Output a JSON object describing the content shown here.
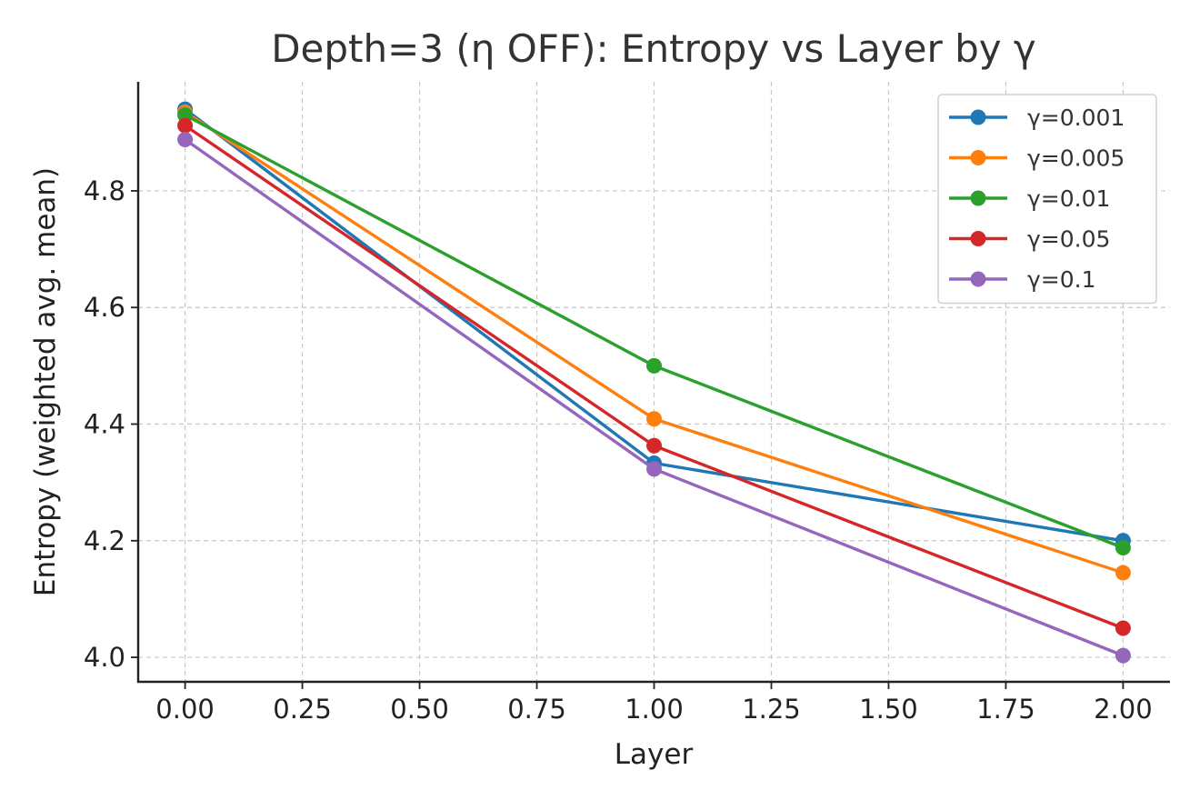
{
  "chart_data": {
    "type": "line",
    "title": "Depth=3 (η OFF): Entropy vs Layer by γ",
    "xlabel": "Layer",
    "ylabel": "Entropy (weighted avg. mean)",
    "xlim": [
      -0.1,
      2.1
    ],
    "ylim": [
      3.958,
      4.987
    ],
    "x_ticks": [
      "0.00",
      "0.25",
      "0.50",
      "0.75",
      "1.00",
      "1.25",
      "1.50",
      "1.75",
      "2.00"
    ],
    "y_ticks": [
      "4.0",
      "4.2",
      "4.4",
      "4.6",
      "4.8"
    ],
    "grid": true,
    "legend_position": "top-right",
    "x": [
      0,
      1,
      2
    ],
    "series": [
      {
        "name": "γ=0.001",
        "color": "#1f77b4",
        "values": [
          4.94,
          4.333,
          4.2
        ]
      },
      {
        "name": "γ=0.005",
        "color": "#ff7f0e",
        "values": [
          4.935,
          4.409,
          4.145
        ]
      },
      {
        "name": "γ=0.01",
        "color": "#2ca02c",
        "values": [
          4.93,
          4.5,
          4.188
        ]
      },
      {
        "name": "γ=0.05",
        "color": "#d62728",
        "values": [
          4.912,
          4.363,
          4.05
        ]
      },
      {
        "name": "γ=0.1",
        "color": "#9467bd",
        "values": [
          4.888,
          4.323,
          4.003
        ]
      }
    ]
  }
}
